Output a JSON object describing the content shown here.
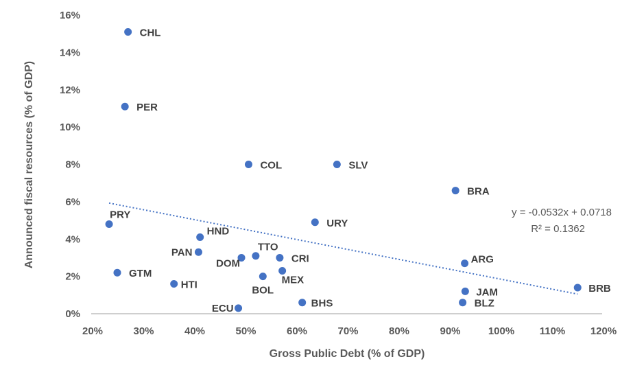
{
  "chart_data": {
    "type": "scatter",
    "xlabel": "Gross Public Debt (% of GDP)",
    "ylabel": "Announced fiscal resources  (% of GDP)",
    "xlim": [
      20,
      120
    ],
    "ylim": [
      0,
      16
    ],
    "x_ticks": [
      "20%",
      "30%",
      "40%",
      "50%",
      "60%",
      "70%",
      "80%",
      "90%",
      "100%",
      "110%",
      "120%"
    ],
    "y_ticks": [
      "0%",
      "2%",
      "4%",
      "6%",
      "8%",
      "10%",
      "12%",
      "14%",
      "16%"
    ],
    "grid": false,
    "marker_color": "#4472C4",
    "points": [
      {
        "label": "CHL",
        "x": 27.2,
        "y": 15.1
      },
      {
        "label": "PER",
        "x": 26.6,
        "y": 11.1
      },
      {
        "label": "COL",
        "x": 50.8,
        "y": 8.0
      },
      {
        "label": "SLV",
        "x": 68.1,
        "y": 8.0
      },
      {
        "label": "BRA",
        "x": 91.3,
        "y": 6.6
      },
      {
        "label": "URY",
        "x": 63.8,
        "y": 4.9
      },
      {
        "label": "PRY",
        "x": 23.5,
        "y": 4.8
      },
      {
        "label": "HND",
        "x": 41.3,
        "y": 4.1
      },
      {
        "label": "PAN",
        "x": 41.0,
        "y": 3.3
      },
      {
        "label": "TTO",
        "x": 52.2,
        "y": 3.1
      },
      {
        "label": "DOM",
        "x": 49.4,
        "y": 3.0
      },
      {
        "label": "CRI",
        "x": 56.9,
        "y": 3.0
      },
      {
        "label": "GTM",
        "x": 25.1,
        "y": 2.2
      },
      {
        "label": "MEX",
        "x": 57.4,
        "y": 2.3
      },
      {
        "label": "BOL",
        "x": 53.6,
        "y": 2.0
      },
      {
        "label": "HTI",
        "x": 36.2,
        "y": 1.6
      },
      {
        "label": "ARG",
        "x": 93.1,
        "y": 2.7
      },
      {
        "label": "JAM",
        "x": 93.2,
        "y": 1.2
      },
      {
        "label": "BLZ",
        "x": 92.7,
        "y": 0.6
      },
      {
        "label": "BRB",
        "x": 115.2,
        "y": 1.4
      },
      {
        "label": "BHS",
        "x": 61.3,
        "y": 0.6
      },
      {
        "label": "ECU",
        "x": 48.8,
        "y": 0.3
      }
    ],
    "trendline": {
      "type": "linear",
      "style": "dotted",
      "slope": -0.0532,
      "intercept": 0.0718,
      "equation": "y = -0.0532x + 0.0718",
      "r_squared": "R² = 0.1362"
    }
  }
}
